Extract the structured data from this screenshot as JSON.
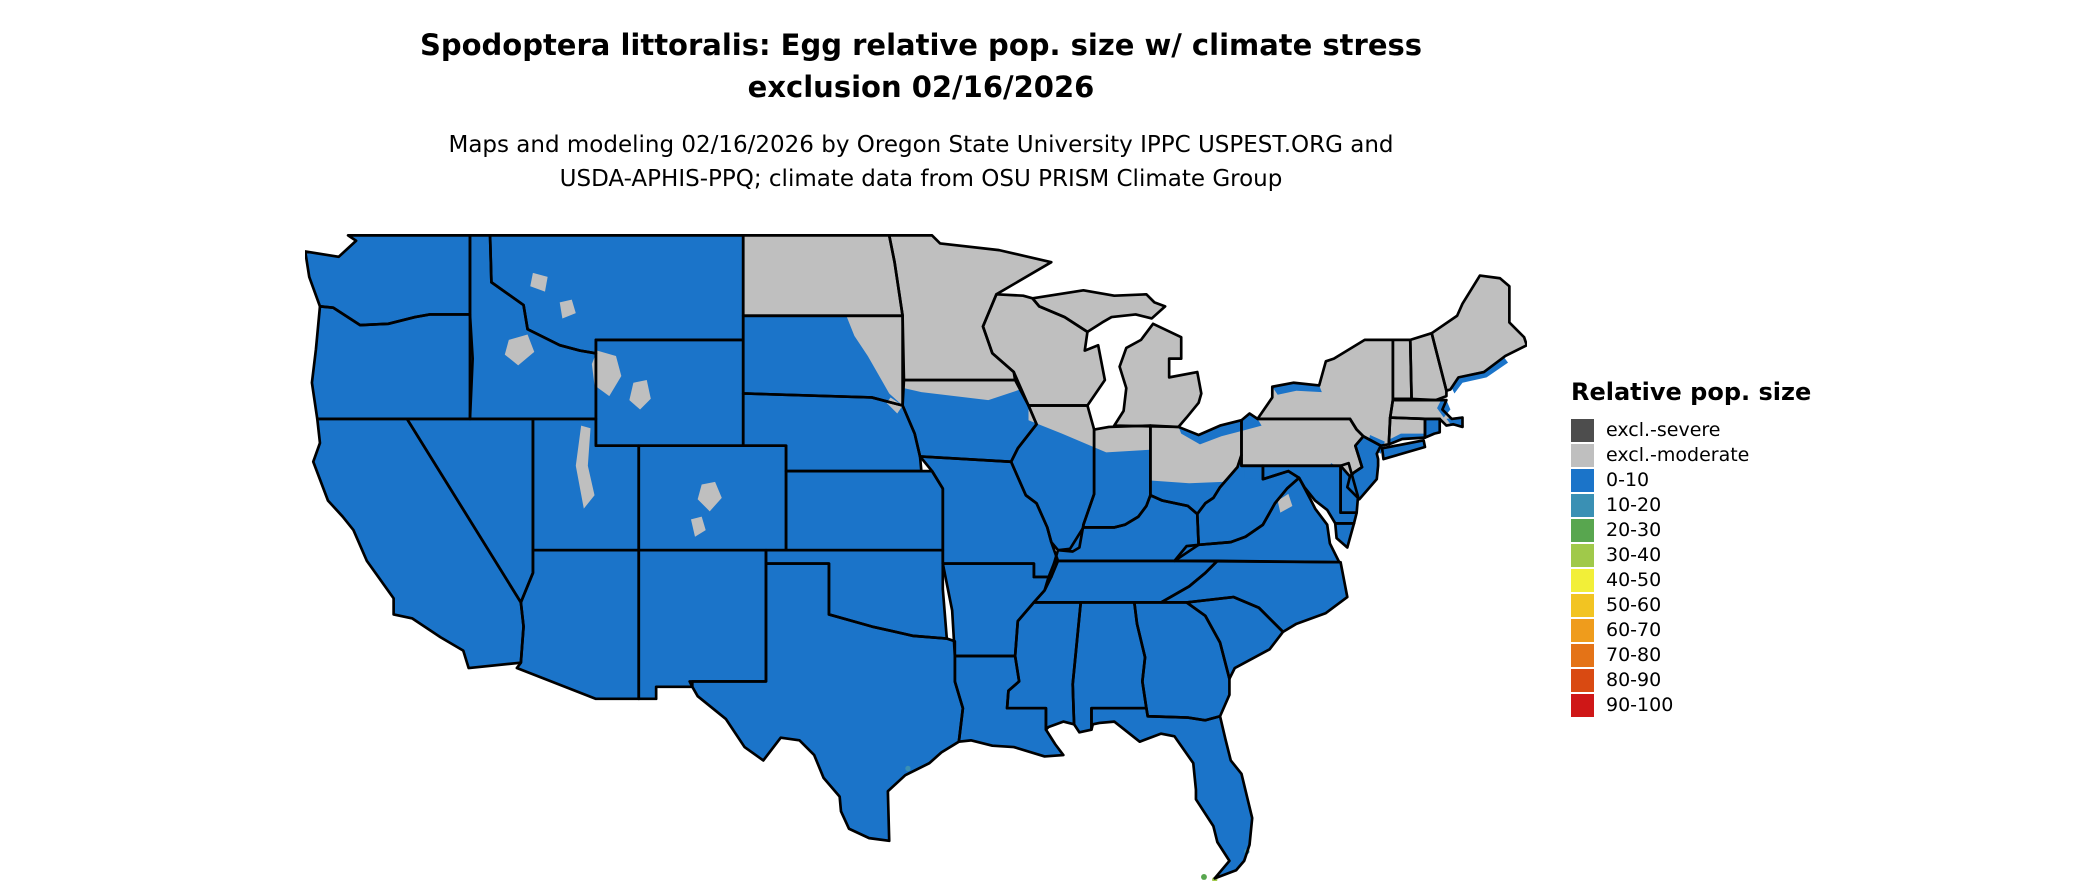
{
  "header": {
    "title_line1": "Spodoptera littoralis: Egg relative pop. size w/ climate stress",
    "title_line2": "exclusion 02/16/2026",
    "subtitle_line1": "Maps and modeling 02/16/2026 by Oregon State University IPPC USPEST.ORG and",
    "subtitle_line2": "USDA-APHIS-PPQ; climate data from OSU PRISM Climate Group"
  },
  "legend": {
    "title": "Relative pop. size",
    "items": [
      {
        "label": "excl.-severe",
        "color": "#4d4d4d"
      },
      {
        "label": "excl.-moderate",
        "color": "#bfbfbf"
      },
      {
        "label": "0-10",
        "color": "#1b74c9"
      },
      {
        "label": "10-20",
        "color": "#3a90b4"
      },
      {
        "label": "20-30",
        "color": "#58a64f"
      },
      {
        "label": "30-40",
        "color": "#a0c94a"
      },
      {
        "label": "40-50",
        "color": "#f2ef38"
      },
      {
        "label": "50-60",
        "color": "#f2c422"
      },
      {
        "label": "60-70",
        "color": "#ef9c1c"
      },
      {
        "label": "70-80",
        "color": "#e47317"
      },
      {
        "label": "80-90",
        "color": "#d94a12"
      },
      {
        "label": "90-100",
        "color": "#cf1717"
      }
    ]
  },
  "map": {
    "stroke_color": "#000000",
    "states": {
      "WA": "0-10",
      "OR": "0-10",
      "CA": "0-10",
      "NV": "0-10",
      "ID": "0-10",
      "MT": "0-10",
      "WY": "0-10",
      "UT": "0-10",
      "CO": "0-10",
      "AZ": "0-10",
      "NM": "0-10",
      "ND": "excl.-moderate",
      "SD": "0-10",
      "NE": "0-10",
      "KS": "0-10",
      "OK": "0-10",
      "TX": "0-10",
      "MN": "excl.-moderate",
      "IA": "0-10",
      "MO": "0-10",
      "AR": "0-10",
      "LA": "0-10",
      "WI": "excl.-moderate",
      "IL": "0-10",
      "IN": "0-10",
      "MI_LP": "excl.-moderate",
      "MI_UP": "excl.-moderate",
      "OH": "0-10",
      "KY": "0-10",
      "TN": "0-10",
      "MS": "0-10",
      "AL": "0-10",
      "GA": "0-10",
      "FL": "0-10",
      "SC": "0-10",
      "NC": "0-10",
      "VA": "0-10",
      "WV": "0-10",
      "MD": "0-10",
      "DE": "0-10",
      "VA_E": "0-10",
      "PA": "excl.-moderate",
      "NJ": "0-10",
      "NY": "excl.-moderate",
      "NY_LI": "0-10",
      "CT": "excl.-moderate",
      "RI": "0-10",
      "MA": "excl.-moderate",
      "VT": "excl.-moderate",
      "NH": "excl.-moderate",
      "ME": "excl.-moderate"
    }
  }
}
